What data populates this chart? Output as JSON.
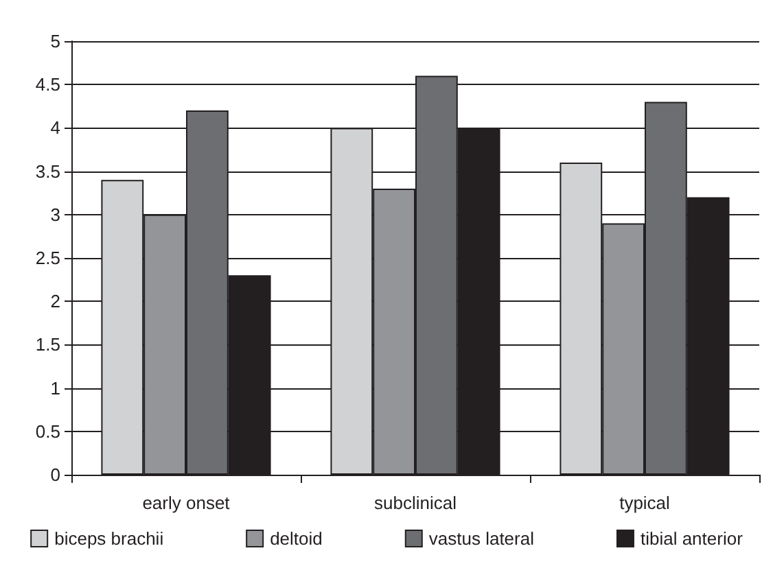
{
  "chart_data": {
    "type": "bar",
    "categories": [
      "early onset",
      "subclinical",
      "typical"
    ],
    "series": [
      {
        "name": "biceps brachii",
        "color": "#d1d2d4",
        "values": [
          3.4,
          4.0,
          3.6
        ]
      },
      {
        "name": "deltoid",
        "color": "#939598",
        "values": [
          3.0,
          3.3,
          2.9
        ]
      },
      {
        "name": "vastus lateral",
        "color": "#6d6e71",
        "values": [
          4.2,
          4.6,
          4.3
        ]
      },
      {
        "name": "tibial anterior",
        "color": "#231f20",
        "values": [
          2.3,
          4.0,
          3.2
        ]
      }
    ],
    "ylim": [
      0,
      5
    ],
    "yticks": [
      0,
      0.5,
      1,
      1.5,
      2,
      2.5,
      3,
      3.5,
      4,
      4.5,
      5
    ],
    "grid": "y",
    "legend": "bottom"
  }
}
